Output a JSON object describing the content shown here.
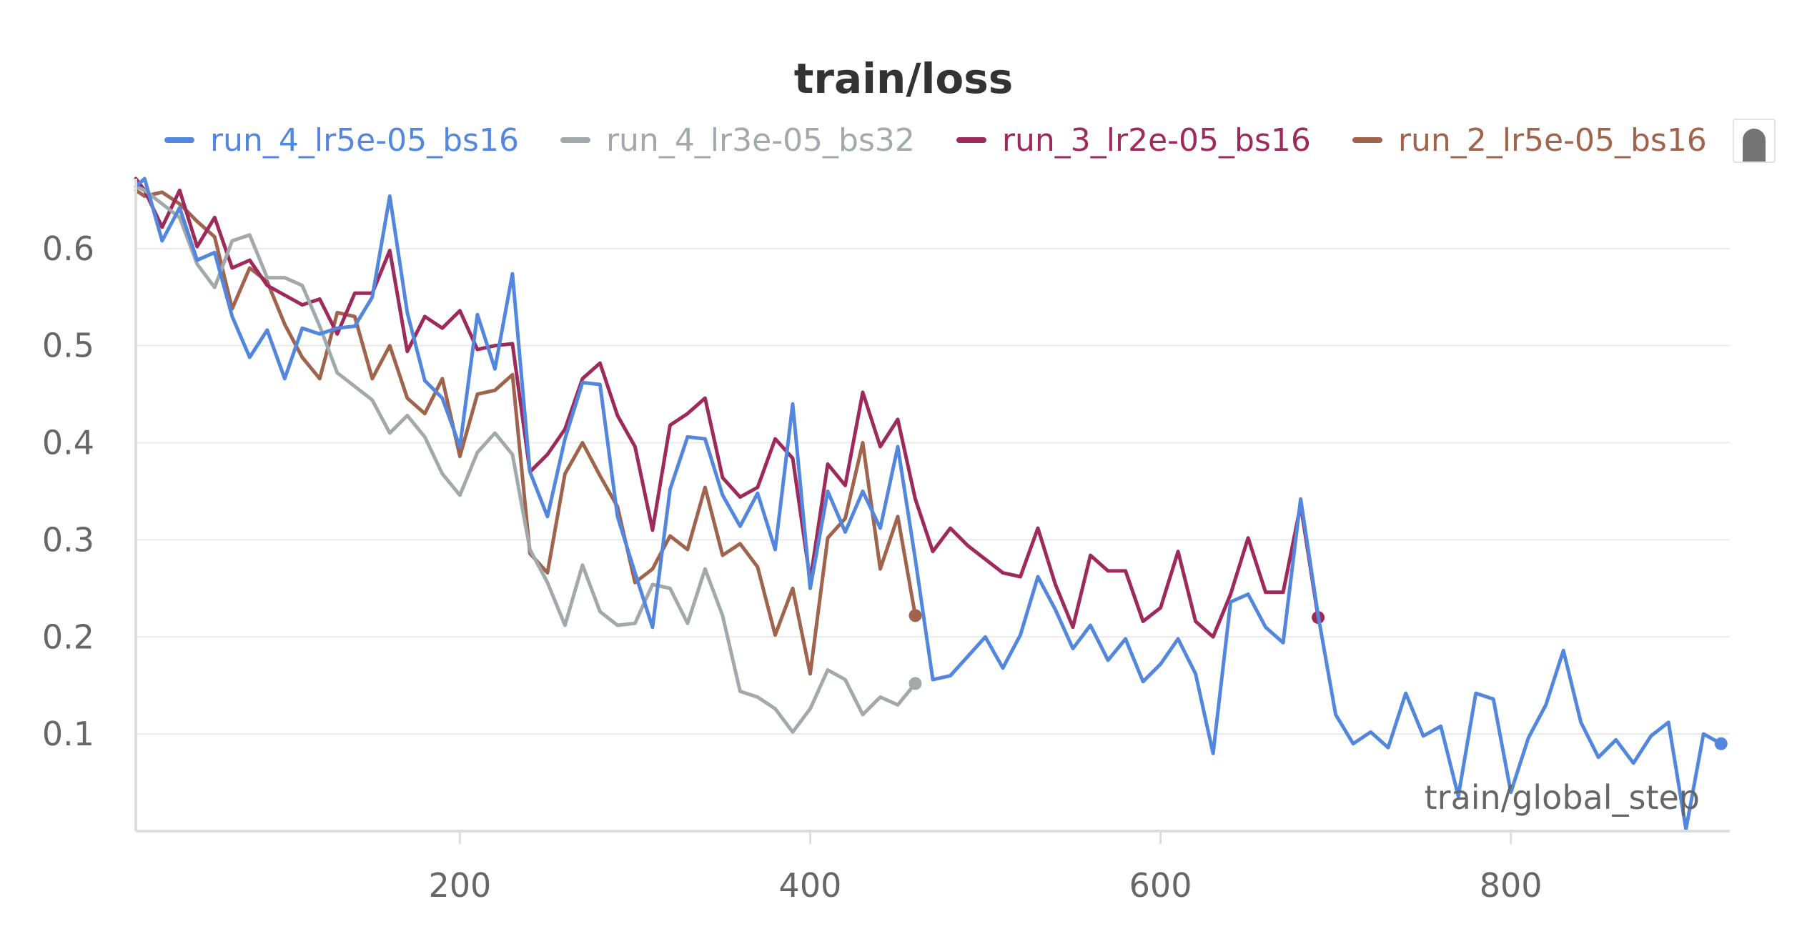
{
  "chart_data": {
    "type": "line",
    "title": "train/loss",
    "xlabel": "train/global_step",
    "ylabel": "",
    "xlim": [
      15,
      925
    ],
    "ylim": [
      0.0,
      0.672
    ],
    "xticks": [
      200,
      400,
      600,
      800
    ],
    "yticks": [
      0.1,
      0.2,
      0.3,
      0.4,
      0.5,
      0.6
    ],
    "xtick_labels": [
      "200",
      "400",
      "600",
      "800"
    ],
    "ytick_labels": [
      "0.1",
      "0.2",
      "0.3",
      "0.4",
      "0.5",
      "0.6"
    ],
    "grid": true,
    "legend_position": "top",
    "series": [
      {
        "name": "run_4_lr5e-05_bs16",
        "color": "#5387DD",
        "end_marker": true,
        "x": [
          10,
          20,
          30,
          40,
          50,
          60,
          70,
          80,
          90,
          100,
          110,
          120,
          130,
          140,
          150,
          160,
          170,
          180,
          190,
          200,
          210,
          220,
          230,
          240,
          250,
          260,
          270,
          280,
          290,
          300,
          310,
          320,
          330,
          340,
          350,
          360,
          370,
          380,
          390,
          400,
          410,
          420,
          430,
          440,
          450,
          460,
          470,
          480,
          490,
          500,
          510,
          520,
          530,
          540,
          550,
          560,
          570,
          580,
          590,
          600,
          610,
          620,
          630,
          640,
          650,
          660,
          670,
          680,
          690,
          700,
          710,
          720,
          730,
          740,
          750,
          760,
          770,
          780,
          790,
          800,
          810,
          820,
          830,
          840,
          850,
          860,
          870,
          880,
          890,
          900,
          910,
          920
        ],
        "y": [
          0.664,
          0.672,
          0.608,
          0.642,
          0.588,
          0.596,
          0.53,
          0.488,
          0.516,
          0.466,
          0.518,
          0.512,
          0.518,
          0.52,
          0.55,
          0.654,
          0.534,
          0.464,
          0.446,
          0.396,
          0.532,
          0.476,
          0.574,
          0.37,
          0.324,
          0.404,
          0.462,
          0.46,
          0.324,
          0.266,
          0.21,
          0.352,
          0.406,
          0.404,
          0.346,
          0.314,
          0.348,
          0.29,
          0.44,
          0.25,
          0.35,
          0.308,
          0.35,
          0.312,
          0.396,
          0.28,
          0.156,
          0.16,
          0.18,
          0.2,
          0.168,
          0.202,
          0.262,
          0.228,
          0.188,
          0.212,
          0.176,
          0.198,
          0.154,
          0.172,
          0.198,
          0.162,
          0.08,
          0.236,
          0.244,
          0.21,
          0.194,
          0.342,
          0.222,
          0.12,
          0.09,
          0.102,
          0.086,
          0.142,
          0.098,
          0.108,
          0.036,
          0.142,
          0.136,
          0.04,
          0.096,
          0.13,
          0.186,
          0.112,
          0.076,
          0.094,
          0.07,
          0.098,
          0.112,
          0.002,
          0.1,
          0.09
        ]
      },
      {
        "name": "run_4_lr3e-05_bs32",
        "color": "#A1A9AD",
        "end_marker": true,
        "x": [
          10,
          20,
          30,
          40,
          50,
          60,
          70,
          80,
          90,
          100,
          110,
          120,
          130,
          140,
          150,
          160,
          170,
          180,
          190,
          200,
          210,
          220,
          230,
          240,
          250,
          260,
          270,
          280,
          290,
          300,
          310,
          320,
          330,
          340,
          350,
          360,
          370,
          380,
          390,
          400,
          410,
          420,
          430,
          440,
          450,
          460
        ],
        "y": [
          0.664,
          0.66,
          0.646,
          0.632,
          0.584,
          0.56,
          0.608,
          0.614,
          0.57,
          0.57,
          0.562,
          0.52,
          0.472,
          0.458,
          0.444,
          0.41,
          0.428,
          0.406,
          0.368,
          0.346,
          0.39,
          0.41,
          0.388,
          0.29,
          0.256,
          0.212,
          0.274,
          0.226,
          0.212,
          0.214,
          0.254,
          0.25,
          0.214,
          0.27,
          0.222,
          0.144,
          0.138,
          0.126,
          0.102,
          0.126,
          0.166,
          0.156,
          0.12,
          0.138,
          0.13,
          0.152
        ]
      },
      {
        "name": "run_3_lr2e-05_bs16",
        "color": "#9E2A5B",
        "end_marker": true,
        "x": [
          10,
          20,
          30,
          40,
          50,
          60,
          70,
          80,
          90,
          100,
          110,
          120,
          130,
          140,
          150,
          160,
          170,
          180,
          190,
          200,
          210,
          220,
          230,
          240,
          250,
          260,
          270,
          280,
          290,
          300,
          310,
          320,
          330,
          340,
          350,
          360,
          370,
          380,
          390,
          400,
          410,
          420,
          430,
          440,
          450,
          460,
          470,
          480,
          490,
          500,
          510,
          520,
          530,
          540,
          550,
          560,
          570,
          580,
          590,
          600,
          610,
          620,
          630,
          640,
          650,
          660,
          670,
          680,
          690
        ],
        "y": [
          0.672,
          0.66,
          0.622,
          0.66,
          0.602,
          0.632,
          0.58,
          0.588,
          0.562,
          0.552,
          0.542,
          0.548,
          0.512,
          0.554,
          0.554,
          0.598,
          0.494,
          0.53,
          0.518,
          0.536,
          0.496,
          0.5,
          0.502,
          0.37,
          0.388,
          0.414,
          0.466,
          0.482,
          0.428,
          0.396,
          0.31,
          0.418,
          0.43,
          0.446,
          0.364,
          0.344,
          0.354,
          0.404,
          0.384,
          0.258,
          0.378,
          0.356,
          0.452,
          0.396,
          0.424,
          0.342,
          0.288,
          0.312,
          0.294,
          0.28,
          0.266,
          0.262,
          0.312,
          0.254,
          0.21,
          0.284,
          0.268,
          0.268,
          0.216,
          0.23,
          0.288,
          0.216,
          0.2,
          0.244,
          0.302,
          0.246,
          0.246,
          0.336,
          0.22
        ]
      },
      {
        "name": "run_2_lr5e-05_bs16",
        "color": "#A0634B",
        "end_marker": true,
        "x": [
          10,
          20,
          30,
          40,
          50,
          60,
          70,
          80,
          90,
          100,
          110,
          120,
          130,
          140,
          150,
          160,
          170,
          180,
          190,
          200,
          210,
          220,
          230,
          240,
          250,
          260,
          270,
          280,
          290,
          300,
          310,
          320,
          330,
          340,
          350,
          360,
          370,
          380,
          390,
          400,
          410,
          420,
          430,
          440,
          450,
          460
        ],
        "y": [
          0.66,
          0.654,
          0.658,
          0.646,
          0.628,
          0.612,
          0.538,
          0.58,
          0.566,
          0.522,
          0.488,
          0.466,
          0.534,
          0.53,
          0.466,
          0.5,
          0.446,
          0.43,
          0.466,
          0.386,
          0.45,
          0.454,
          0.47,
          0.286,
          0.266,
          0.368,
          0.4,
          0.366,
          0.334,
          0.256,
          0.27,
          0.304,
          0.29,
          0.354,
          0.284,
          0.296,
          0.272,
          0.202,
          0.25,
          0.162,
          0.302,
          0.322,
          0.4,
          0.27,
          0.324,
          0.222
        ]
      }
    ]
  }
}
